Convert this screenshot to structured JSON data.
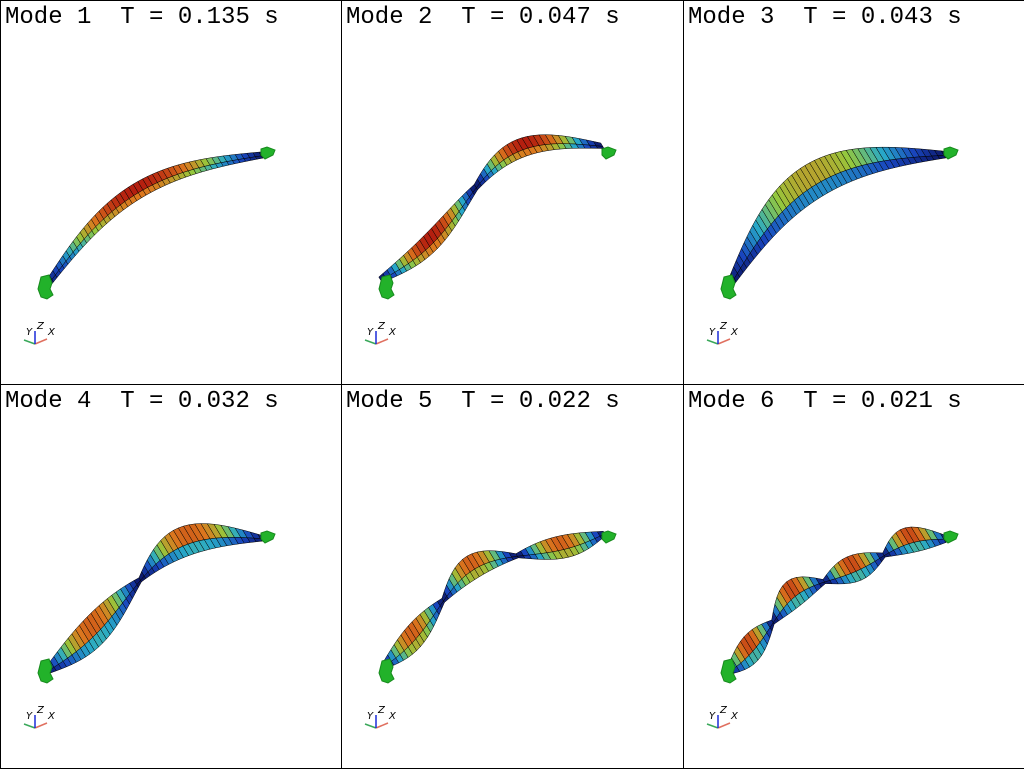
{
  "panels": [
    {
      "mode_label": "Mode 1",
      "period_label": "T = 0.135 s"
    },
    {
      "mode_label": "Mode 2",
      "period_label": "T = 0.047 s"
    },
    {
      "mode_label": "Mode 3",
      "period_label": "T = 0.043 s"
    },
    {
      "mode_label": "Mode 4",
      "period_label": "T = 0.032 s"
    },
    {
      "mode_label": "Mode 5",
      "period_label": "T = 0.022 s"
    },
    {
      "mode_label": "Mode 6",
      "period_label": "T = 0.021 s"
    }
  ],
  "axes_triad": {
    "y": "Y",
    "z": "Z",
    "x": "X"
  },
  "colors": {
    "support": "#22b22a",
    "axis_x": "#e07060",
    "axis_y": "#3aa85a",
    "axis_z": "#1a2ad8",
    "mesh_low": "#0a1a6a",
    "mesh_high": "#c02a10"
  }
}
